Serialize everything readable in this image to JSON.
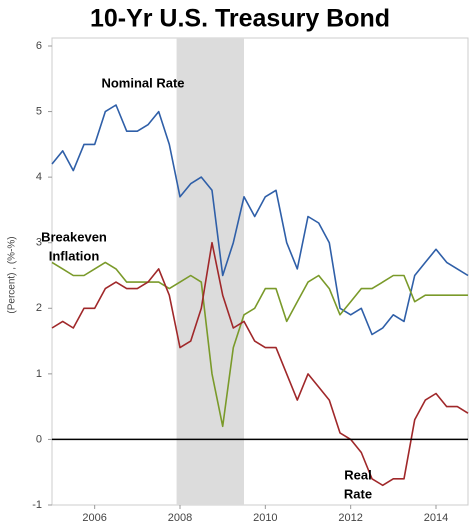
{
  "chart_data": {
    "type": "line",
    "title": "10-Yr U.S. Treasury Bond",
    "y_label": "(Percent) , (%-%)",
    "x": [
      2005,
      2005.25,
      2005.5,
      2005.75,
      2006,
      2006.25,
      2006.5,
      2006.75,
      2007,
      2007.25,
      2007.5,
      2007.75,
      2008,
      2008.25,
      2008.5,
      2008.75,
      2009,
      2009.25,
      2009.5,
      2009.75,
      2010,
      2010.25,
      2010.5,
      2010.75,
      2011,
      2011.25,
      2011.5,
      2011.75,
      2012,
      2012.25,
      2012.5,
      2012.75,
      2013,
      2013.25,
      2013.5,
      2013.75,
      2014,
      2014.25,
      2014.5,
      2014.75
    ],
    "series": [
      {
        "label": [
          "Nominal Rate"
        ],
        "color": "#2f5fa8",
        "values": [
          4.2,
          4.4,
          4.1,
          4.5,
          4.5,
          5.0,
          5.1,
          4.7,
          4.7,
          4.8,
          5.0,
          4.5,
          3.7,
          3.9,
          4.0,
          3.8,
          2.5,
          3.0,
          3.7,
          3.4,
          3.7,
          3.8,
          3.0,
          2.6,
          3.4,
          3.3,
          3.0,
          2.0,
          1.9,
          2.0,
          1.6,
          1.7,
          1.9,
          1.8,
          2.5,
          2.7,
          2.9,
          2.7,
          2.6,
          2.5
        ]
      },
      {
        "label": [
          "Breakeven",
          "Inflation"
        ],
        "color": "#7a9a2a",
        "values": [
          2.7,
          2.6,
          2.5,
          2.5,
          2.6,
          2.7,
          2.6,
          2.4,
          2.4,
          2.4,
          2.4,
          2.3,
          2.4,
          2.5,
          2.4,
          1.0,
          0.2,
          1.4,
          1.9,
          2.0,
          2.3,
          2.3,
          1.8,
          2.1,
          2.4,
          2.5,
          2.3,
          1.9,
          2.1,
          2.3,
          2.3,
          2.4,
          2.5,
          2.5,
          2.1,
          2.2,
          2.2,
          2.2,
          2.2,
          2.2
        ]
      },
      {
        "label": [
          "Real",
          "Rate"
        ],
        "color": "#a0282a",
        "values": [
          1.7,
          1.8,
          1.7,
          2.0,
          2.0,
          2.3,
          2.4,
          2.3,
          2.3,
          2.4,
          2.6,
          2.2,
          1.4,
          1.5,
          2.0,
          3.0,
          2.2,
          1.7,
          1.8,
          1.5,
          1.4,
          1.4,
          1.0,
          0.6,
          1.0,
          0.8,
          0.6,
          0.1,
          0.0,
          -0.2,
          -0.6,
          -0.7,
          -0.6,
          -0.6,
          0.3,
          0.6,
          0.7,
          0.5,
          0.5,
          0.4
        ]
      }
    ],
    "recession": [
      2007.92,
      2009.5
    ],
    "recession_color": "#dcdcdc",
    "xlim": [
      2005,
      2014.75
    ],
    "xticks": [
      2006,
      2008,
      2010,
      2012,
      2014
    ],
    "ylim": [
      -1,
      6
    ],
    "yticks": [
      -1,
      0,
      1,
      2,
      3,
      4,
      5,
      6
    ],
    "zero_line": true
  }
}
